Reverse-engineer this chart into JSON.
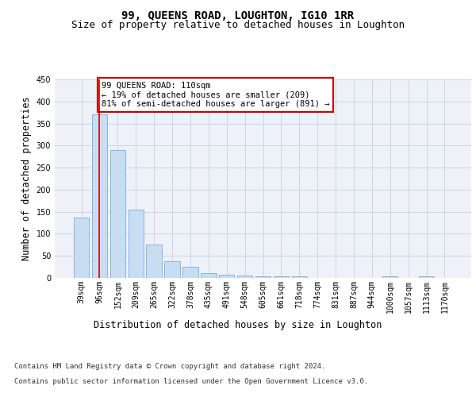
{
  "title": "99, QUEENS ROAD, LOUGHTON, IG10 1RR",
  "subtitle": "Size of property relative to detached houses in Loughton",
  "xlabel": "Distribution of detached houses by size in Loughton",
  "ylabel": "Number of detached properties",
  "bar_labels": [
    "39sqm",
    "96sqm",
    "152sqm",
    "209sqm",
    "265sqm",
    "322sqm",
    "378sqm",
    "435sqm",
    "491sqm",
    "548sqm",
    "605sqm",
    "661sqm",
    "718sqm",
    "774sqm",
    "831sqm",
    "887sqm",
    "944sqm",
    "1000sqm",
    "1057sqm",
    "1113sqm",
    "1170sqm"
  ],
  "bar_values": [
    136,
    370,
    289,
    154,
    75,
    38,
    25,
    11,
    8,
    6,
    4,
    4,
    4,
    0,
    0,
    0,
    0,
    3,
    0,
    3,
    0
  ],
  "bar_color": "#c9ddf2",
  "bar_edge_color": "#7aaad4",
  "vline_x": 1,
  "vline_color": "#cc0000",
  "annotation_text": "99 QUEENS ROAD: 110sqm\n← 19% of detached houses are smaller (209)\n81% of semi-detached houses are larger (891) →",
  "annotation_box_color": "#ffffff",
  "annotation_box_edge": "#cc0000",
  "ylim": [
    0,
    450
  ],
  "yticks": [
    0,
    50,
    100,
    150,
    200,
    250,
    300,
    350,
    400,
    450
  ],
  "footer_line1": "Contains HM Land Registry data © Crown copyright and database right 2024.",
  "footer_line2": "Contains public sector information licensed under the Open Government Licence v3.0.",
  "bg_color": "#ffffff",
  "plot_bg_color": "#eef2f8",
  "title_fontsize": 10,
  "subtitle_fontsize": 9,
  "axis_label_fontsize": 8.5,
  "tick_fontsize": 7,
  "annotation_fontsize": 7.5,
  "footer_fontsize": 6.5
}
